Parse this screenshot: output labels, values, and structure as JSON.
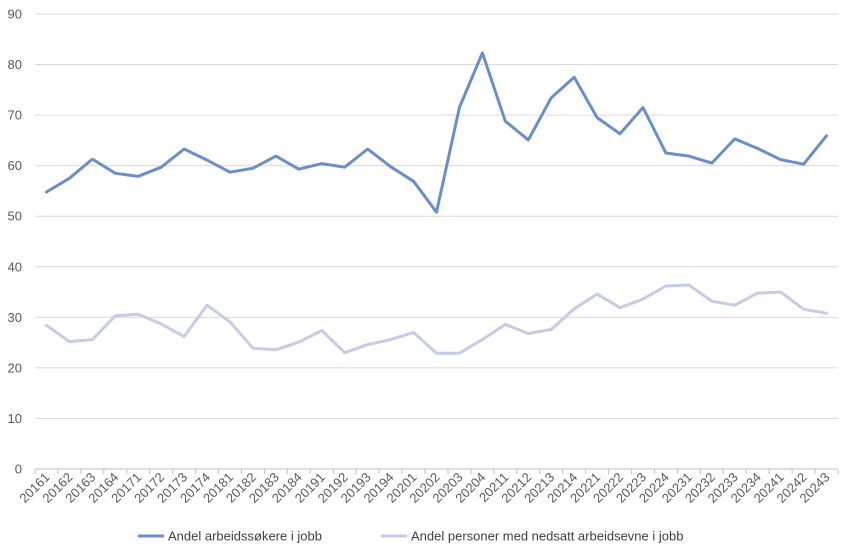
{
  "chart_data": {
    "type": "line",
    "title": "",
    "xlabel": "",
    "ylabel": "",
    "ylim": [
      0,
      90
    ],
    "yticks": [
      0,
      10,
      20,
      30,
      40,
      50,
      60,
      70,
      80,
      90
    ],
    "grid": true,
    "legend_position": "bottom",
    "categories": [
      "20161",
      "20162",
      "20163",
      "20164",
      "20171",
      "20172",
      "20173",
      "20174",
      "20181",
      "20182",
      "20183",
      "20184",
      "20191",
      "20192",
      "20193",
      "20194",
      "20201",
      "20202",
      "20203",
      "20204",
      "20211",
      "20212",
      "20213",
      "20214",
      "20221",
      "20222",
      "20223",
      "20224",
      "20231",
      "20232",
      "20233",
      "20234",
      "20241",
      "20242",
      "20243"
    ],
    "series": [
      {
        "name": "Andel arbeidssøkere i jobb",
        "color": "#6a8fc8",
        "values": [
          54.8,
          57.5,
          61.3,
          58.5,
          57.9,
          59.7,
          63.3,
          61.1,
          58.7,
          59.5,
          61.9,
          59.3,
          60.4,
          59.7,
          63.3,
          59.8,
          56.9,
          50.8,
          71.5,
          82.3,
          68.8,
          65.1,
          73.4,
          77.5,
          69.5,
          66.3,
          71.5,
          62.5,
          61.9,
          60.5,
          65.3,
          63.4,
          61.2,
          60.3,
          65.9
        ]
      },
      {
        "name": "Andel personer med nedsatt arbeidsevne i jobb",
        "color": "#c5cce8",
        "values": [
          28.4,
          25.2,
          25.6,
          30.3,
          30.6,
          28.7,
          26.2,
          32.4,
          29.1,
          23.9,
          23.6,
          25.1,
          27.4,
          23.0,
          24.6,
          25.6,
          27.0,
          22.9,
          22.9,
          25.6,
          28.6,
          26.8,
          27.6,
          31.7,
          34.6,
          31.9,
          33.6,
          36.2,
          36.4,
          33.2,
          32.4,
          34.8,
          35.0,
          31.6,
          30.8
        ]
      }
    ]
  }
}
